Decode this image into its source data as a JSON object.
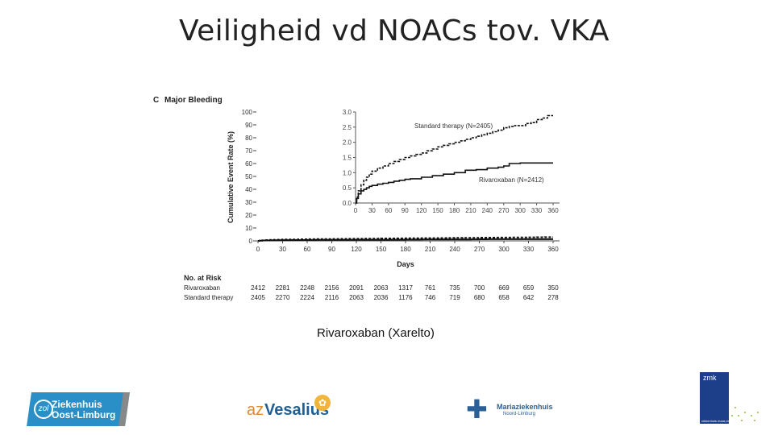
{
  "slide": {
    "title": "Veiligheid vd NOACs tov. VKA",
    "caption": "Rivaroxaban (Xarelto)"
  },
  "chart_data": {
    "type": "line",
    "panel_letter": "C",
    "title": "Major Bleeding",
    "ylabel": "Cumulative Event Rate (%)",
    "xlabel": "Days",
    "main_axes": {
      "ylim": [
        0,
        100
      ],
      "yticks": [
        "0",
        "10",
        "20",
        "30",
        "40",
        "50",
        "60",
        "70",
        "80",
        "90",
        "100"
      ],
      "xlim": [
        0,
        360
      ],
      "xticks": [
        "0",
        "30",
        "60",
        "90",
        "120",
        "150",
        "180",
        "210",
        "240",
        "270",
        "300",
        "330",
        "360"
      ]
    },
    "inset_axes": {
      "ylim": [
        0,
        3.0
      ],
      "yticks": [
        "0.0",
        "0.5",
        "1.0",
        "1.5",
        "2.0",
        "2.5",
        "3.0"
      ],
      "xlim": [
        0,
        360
      ],
      "xticks": [
        "0",
        "30",
        "60",
        "90",
        "120",
        "150",
        "180",
        "210",
        "240",
        "270",
        "300",
        "330",
        "360"
      ]
    },
    "series": [
      {
        "name": "Standard therapy",
        "legend_label": "Standard therapy (N=2405)",
        "style": "dashed",
        "x": [
          0,
          2,
          5,
          10,
          15,
          20,
          25,
          30,
          40,
          50,
          60,
          70,
          80,
          90,
          100,
          110,
          120,
          130,
          140,
          150,
          160,
          170,
          180,
          190,
          200,
          210,
          220,
          230,
          240,
          250,
          260,
          270,
          280,
          290,
          300,
          310,
          320,
          330,
          340,
          350,
          360
        ],
        "y": [
          0,
          0.2,
          0.4,
          0.6,
          0.75,
          0.85,
          0.95,
          1.05,
          1.15,
          1.22,
          1.3,
          1.37,
          1.43,
          1.5,
          1.55,
          1.6,
          1.65,
          1.72,
          1.78,
          1.85,
          1.9,
          1.95,
          2.0,
          2.05,
          2.1,
          2.15,
          2.2,
          2.25,
          2.3,
          2.35,
          2.4,
          2.48,
          2.52,
          2.55,
          2.55,
          2.62,
          2.65,
          2.75,
          2.8,
          2.88,
          2.88
        ]
      },
      {
        "name": "Rivaroxaban",
        "legend_label": "Rivaroxaban (N=2412)",
        "style": "solid",
        "x": [
          0,
          2,
          5,
          10,
          15,
          20,
          25,
          30,
          40,
          50,
          60,
          70,
          80,
          90,
          100,
          120,
          140,
          160,
          180,
          200,
          220,
          240,
          260,
          270,
          280,
          300,
          330,
          360
        ],
        "y": [
          0,
          0.15,
          0.3,
          0.4,
          0.45,
          0.5,
          0.55,
          0.58,
          0.62,
          0.65,
          0.68,
          0.72,
          0.75,
          0.78,
          0.8,
          0.85,
          0.9,
          0.95,
          1.0,
          1.08,
          1.1,
          1.15,
          1.18,
          1.22,
          1.3,
          1.32,
          1.32,
          1.32
        ]
      }
    ],
    "at_risk": {
      "header": "No. at Risk",
      "rows": [
        {
          "label": "Rivaroxaban",
          "values": [
            "2412",
            "2281",
            "2248",
            "2156",
            "2091",
            "2063",
            "1317",
            "761",
            "735",
            "700",
            "669",
            "659",
            "350"
          ]
        },
        {
          "label": "Standard therapy",
          "values": [
            "2405",
            "2270",
            "2224",
            "2116",
            "2063",
            "2036",
            "1176",
            "746",
            "719",
            "680",
            "658",
            "642",
            "278"
          ]
        }
      ]
    }
  },
  "logos": {
    "zol": {
      "line1": "Ziekenhuis",
      "line2": "Oost-Limburg"
    },
    "vesalius": {
      "prefix": "az",
      "name": "Vesalius"
    },
    "maria": {
      "line1": "Mariaziekenhuis",
      "line2": "Noord-Limburg"
    },
    "zmk": {
      "label": "zmk",
      "foot": "ziekenhuis maas en kempen"
    }
  },
  "colors": {
    "zol_blue": "#2a8fc7",
    "vesalius_orange": "#e08a2c",
    "vesalius_blue": "#1f5f93",
    "maria_blue": "#2c5f96",
    "zmk_navy": "#1d3f8a",
    "zmk_dot_green": "#8bbf3a"
  }
}
